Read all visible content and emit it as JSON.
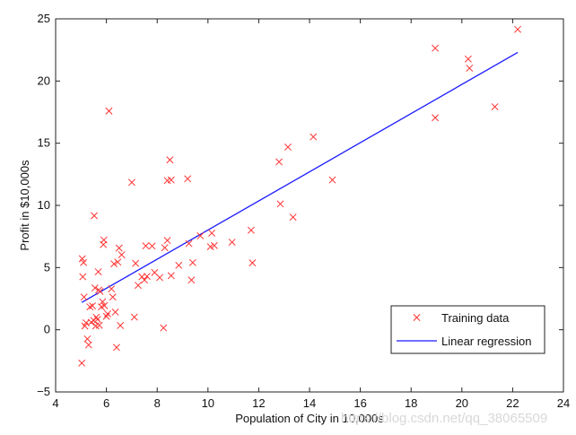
{
  "chart_data": {
    "type": "scatter",
    "title": "",
    "xlabel": "Population of City in 10,000s",
    "ylabel": "Profit in $10,000s",
    "xlim": [
      4,
      24
    ],
    "ylim": [
      -5,
      25
    ],
    "xticks": [
      4,
      6,
      8,
      10,
      12,
      14,
      16,
      18,
      20,
      22,
      24
    ],
    "yticks": [
      -5,
      0,
      5,
      10,
      15,
      20,
      25
    ],
    "grid": false,
    "legend_position": "bottom-right",
    "colors": {
      "training": "#ff3333",
      "regression": "#1a1aff"
    },
    "series": [
      {
        "name": "Training data",
        "type": "scatter",
        "marker": "x",
        "points": [
          [
            5.03,
            -2.68
          ],
          [
            5.05,
            5.71
          ],
          [
            5.07,
            4.26
          ],
          [
            5.1,
            5.41
          ],
          [
            5.12,
            2.63
          ],
          [
            5.15,
            0.3
          ],
          [
            5.2,
            0.56
          ],
          [
            5.25,
            -0.74
          ],
          [
            5.3,
            -1.22
          ],
          [
            5.35,
            1.84
          ],
          [
            5.4,
            0.6
          ],
          [
            5.45,
            1.92
          ],
          [
            5.5,
            0.75
          ],
          [
            5.52,
            9.17
          ],
          [
            5.55,
            3.36
          ],
          [
            5.58,
            0.31
          ],
          [
            5.6,
            1.01
          ],
          [
            5.65,
            0.84
          ],
          [
            5.68,
            4.66
          ],
          [
            5.7,
            3.2
          ],
          [
            5.72,
            0.36
          ],
          [
            5.75,
            3.08
          ],
          [
            5.8,
            1.84
          ],
          [
            5.85,
            2.25
          ],
          [
            5.88,
            6.85
          ],
          [
            5.9,
            7.22
          ],
          [
            5.92,
            1.94
          ],
          [
            6.0,
            1.08
          ],
          [
            6.05,
            1.28
          ],
          [
            6.1,
            17.59
          ],
          [
            6.2,
            3.29
          ],
          [
            6.25,
            2.63
          ],
          [
            6.3,
            5.3
          ],
          [
            6.35,
            1.42
          ],
          [
            6.4,
            -1.42
          ],
          [
            6.45,
            5.44
          ],
          [
            6.5,
            6.57
          ],
          [
            6.55,
            0.34
          ],
          [
            6.6,
            6.03
          ],
          [
            7.0,
            11.85
          ],
          [
            7.1,
            1.02
          ],
          [
            7.15,
            5.34
          ],
          [
            7.25,
            3.57
          ],
          [
            7.4,
            4.26
          ],
          [
            7.5,
            4.0
          ],
          [
            7.55,
            6.75
          ],
          [
            7.6,
            4.3
          ],
          [
            7.8,
            6.73
          ],
          [
            7.9,
            4.6
          ],
          [
            8.1,
            4.2
          ],
          [
            8.25,
            0.15
          ],
          [
            8.3,
            6.6
          ],
          [
            8.4,
            7.18
          ],
          [
            8.4,
            12.0
          ],
          [
            8.5,
            13.66
          ],
          [
            8.55,
            12.05
          ],
          [
            8.55,
            4.35
          ],
          [
            8.85,
            5.18
          ],
          [
            9.2,
            12.14
          ],
          [
            9.25,
            6.93
          ],
          [
            9.35,
            4.0
          ],
          [
            9.4,
            5.4
          ],
          [
            9.7,
            7.55
          ],
          [
            10.1,
            6.68
          ],
          [
            10.15,
            7.77
          ],
          [
            10.25,
            6.77
          ],
          [
            10.95,
            7.04
          ],
          [
            11.7,
            8.0
          ],
          [
            11.75,
            5.38
          ],
          [
            12.8,
            13.5
          ],
          [
            12.85,
            10.12
          ],
          [
            13.15,
            14.69
          ],
          [
            13.35,
            9.05
          ],
          [
            14.15,
            15.51
          ],
          [
            14.9,
            12.05
          ],
          [
            18.95,
            22.64
          ],
          [
            18.95,
            17.05
          ],
          [
            20.25,
            21.77
          ],
          [
            20.3,
            21.03
          ],
          [
            21.3,
            17.93
          ],
          [
            22.2,
            24.15
          ]
        ]
      },
      {
        "name": "Linear regression",
        "type": "line",
        "points": [
          [
            5.03,
            2.2
          ],
          [
            22.2,
            22.3
          ]
        ]
      }
    ],
    "watermark": "https://blog.csdn.net/qq_38065509"
  }
}
